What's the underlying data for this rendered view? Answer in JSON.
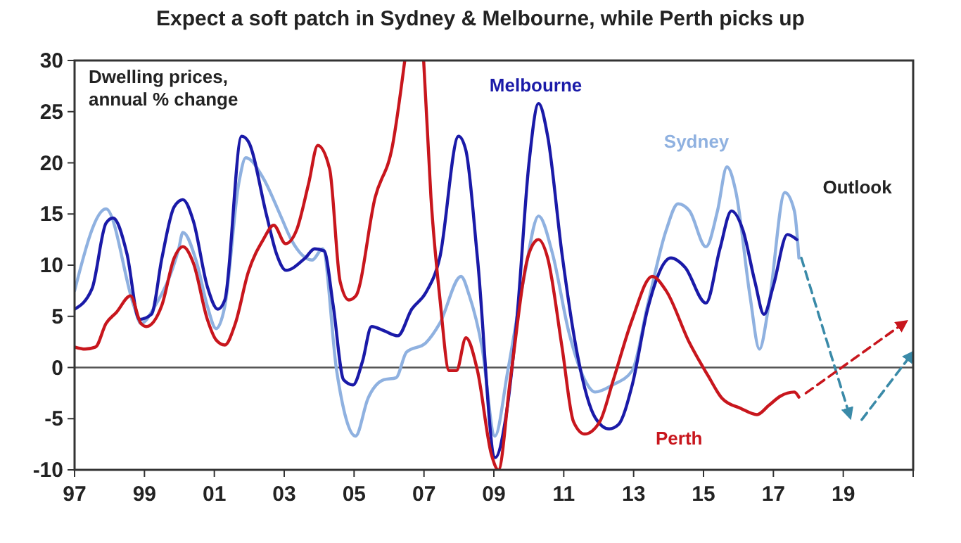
{
  "chart_data": {
    "type": "line",
    "title": "Expect a soft patch in Sydney & Melbourne, while Perth picks up",
    "annotations": [
      "Dwelling prices,",
      "annual % change",
      "Outlook"
    ],
    "xlim": [
      1997,
      2021
    ],
    "xticks": [
      {
        "value": 1997,
        "label": "97"
      },
      {
        "value": 1999,
        "label": "99"
      },
      {
        "value": 2001,
        "label": "01"
      },
      {
        "value": 2003,
        "label": "03"
      },
      {
        "value": 2005,
        "label": "05"
      },
      {
        "value": 2007,
        "label": "07"
      },
      {
        "value": 2009,
        "label": "09"
      },
      {
        "value": 2011,
        "label": "11"
      },
      {
        "value": 2013,
        "label": "13"
      },
      {
        "value": 2015,
        "label": "15"
      },
      {
        "value": 2017,
        "label": "17"
      },
      {
        "value": 2019,
        "label": "19"
      },
      {
        "value": 2021,
        "label": null
      }
    ],
    "ylim": [
      -10,
      30
    ],
    "yticks": [
      -10,
      -5,
      0,
      5,
      10,
      15,
      20,
      25,
      30
    ],
    "grid": false,
    "legend": false,
    "marker": "none",
    "ref_lines": [
      {
        "axis": "y",
        "value": 0,
        "color": "#555555"
      }
    ],
    "series": [
      {
        "name": "Sydney",
        "color": "#8fb1e0",
        "x": [
          1997,
          1997.9,
          1998.7,
          1998.9,
          1999.3,
          1999.98,
          2000.1,
          2000.5,
          2000.8,
          2001.05,
          2001.3,
          2001.7,
          2001.9,
          2002.4,
          2002.9,
          2003.2,
          2003.8,
          2004.1,
          2004.5,
          2005.04,
          2005.4,
          2005.85,
          2006.2,
          2006.5,
          2007.05,
          2007.45,
          2008.06,
          2008.3,
          2008.66,
          2009.03,
          2009.4,
          2009.87,
          2010.28,
          2010.68,
          2011.15,
          2011.6,
          2011.9,
          2012.4,
          2012.96,
          2013.4,
          2013.93,
          2014.27,
          2014.6,
          2015.07,
          2015.4,
          2015.67,
          2015.93,
          2016.33,
          2016.6,
          2016.87,
          2017.33,
          2017.6,
          2017.73
        ],
        "values": [
          7.5,
          15.5,
          6,
          4.3,
          6,
          11.6,
          13.2,
          10.2,
          6,
          3.8,
          6,
          18,
          20.5,
          18.5,
          14.8,
          12.5,
          10.5,
          11.6,
          -0.3,
          -6.7,
          -3,
          -1.2,
          -1,
          1.5,
          2.4,
          4.3,
          8.9,
          7,
          2,
          -6.7,
          -0.3,
          8.9,
          14.8,
          11.1,
          3.4,
          -1.2,
          -2.4,
          -1.7,
          -0.3,
          6.1,
          13.4,
          16,
          15.3,
          11.8,
          15.3,
          19.6,
          17.1,
          7,
          1.8,
          6.1,
          17.1,
          15.3,
          10.7
        ]
      },
      {
        "name": "Melbourne",
        "color": "#1a1aa8",
        "x": [
          1997,
          1997.5,
          1997.9,
          1998.1,
          1998.5,
          1998.85,
          1999.2,
          1999.5,
          1999.85,
          2000.1,
          2000.4,
          2000.8,
          2001.1,
          2001.3,
          2001.78,
          2001.97,
          2002.5,
          2002.78,
          2003.05,
          2003.6,
          2003.87,
          2004.14,
          2004.4,
          2004.7,
          2004.97,
          2005.24,
          2005.5,
          2005.85,
          2006.25,
          2006.65,
          2007.05,
          2007.45,
          2007.99,
          2008.2,
          2008.53,
          2009.04,
          2009.34,
          2009.67,
          2010,
          2010.28,
          2010.54,
          2010.95,
          2011.35,
          2011.9,
          2012.3,
          2012.56,
          2012.96,
          2013.4,
          2014.07,
          2014.47,
          2015.07,
          2015.47,
          2015.8,
          2016.13,
          2016.47,
          2016.73,
          2017,
          2017.4,
          2017.67
        ],
        "values": [
          5.7,
          7.7,
          14.1,
          14.6,
          11.1,
          4.7,
          5.2,
          10.7,
          15.7,
          16.4,
          14.3,
          7.9,
          5.7,
          6.6,
          22.6,
          22.1,
          14.8,
          11.1,
          9.5,
          10.7,
          11.6,
          11.4,
          6.1,
          -1.2,
          -1.7,
          0.6,
          4,
          3.6,
          3.1,
          5.7,
          7.3,
          10.7,
          22.6,
          21.2,
          10.7,
          -8.8,
          -4.9,
          5.2,
          19.8,
          25.8,
          22.6,
          11.1,
          2,
          -4.9,
          -6,
          -5.6,
          -1.7,
          5.7,
          10.7,
          9.8,
          6.3,
          11.6,
          15.3,
          13.4,
          8.4,
          5.2,
          8,
          13,
          12.5
        ]
      },
      {
        "name": "Perth",
        "color": "#c8161d",
        "x": [
          1997,
          1997.3,
          1997.6,
          1997.9,
          1998.2,
          1998.6,
          1998.9,
          1999.05,
          1999.5,
          1999.85,
          2000.1,
          2000.4,
          2000.8,
          2001.05,
          2001.3,
          2001.6,
          2001.97,
          2002.4,
          2002.7,
          2003.04,
          2003.35,
          2003.7,
          2003.96,
          2004.3,
          2004.6,
          2004.85,
          2005.05,
          2005.6,
          2006.1,
          2006.45,
          2006.7,
          2006.99,
          2007.2,
          2007.46,
          2007.72,
          2007.93,
          2008.2,
          2008.53,
          2008.93,
          2009.13,
          2009.47,
          2010,
          2010.28,
          2010.54,
          2010.95,
          2011.28,
          2011.6,
          2012.03,
          2012.42,
          2012.96,
          2013.53,
          2013.93,
          2014.6,
          2015.13,
          2015.53,
          2016.07,
          2016.53,
          2016.87,
          2017.2,
          2017.6,
          2017.73
        ],
        "values": [
          2,
          1.8,
          2,
          4.3,
          5.4,
          7,
          4.3,
          4,
          6.1,
          10.7,
          11.8,
          10.2,
          4.7,
          2.7,
          2.2,
          4.3,
          9.3,
          12.5,
          13.9,
          12.1,
          13.4,
          18,
          21.7,
          19.4,
          8.4,
          6.6,
          7,
          16.6,
          21.7,
          30,
          null,
          30,
          16.6,
          6.6,
          -0.3,
          -0.3,
          2.9,
          -0.3,
          -8.5,
          -10,
          -1.2,
          11.1,
          12.5,
          10.7,
          2,
          -5.3,
          -6.5,
          -5.3,
          -1.2,
          4.7,
          8.9,
          7.5,
          2.4,
          -0.8,
          -3,
          -4,
          -4.6,
          -3.7,
          -2.8,
          -2.4,
          -2.9
        ]
      },
      {
        "color": "#3a8aa8",
        "line_style": "dashed",
        "x": [
          2017.8,
          2019.2
        ],
        "values": [
          10.7,
          -4.9
        ]
      },
      {
        "color": "#3a8aa8",
        "line_style": "dashed",
        "x": [
          2019.53,
          2021
        ],
        "values": [
          -5.1,
          1.5
        ]
      },
      {
        "color": "#c8161d",
        "line_style": "dashed",
        "x": [
          2017.93,
          2020.8
        ],
        "values": [
          -2.5,
          4.5
        ]
      }
    ]
  }
}
